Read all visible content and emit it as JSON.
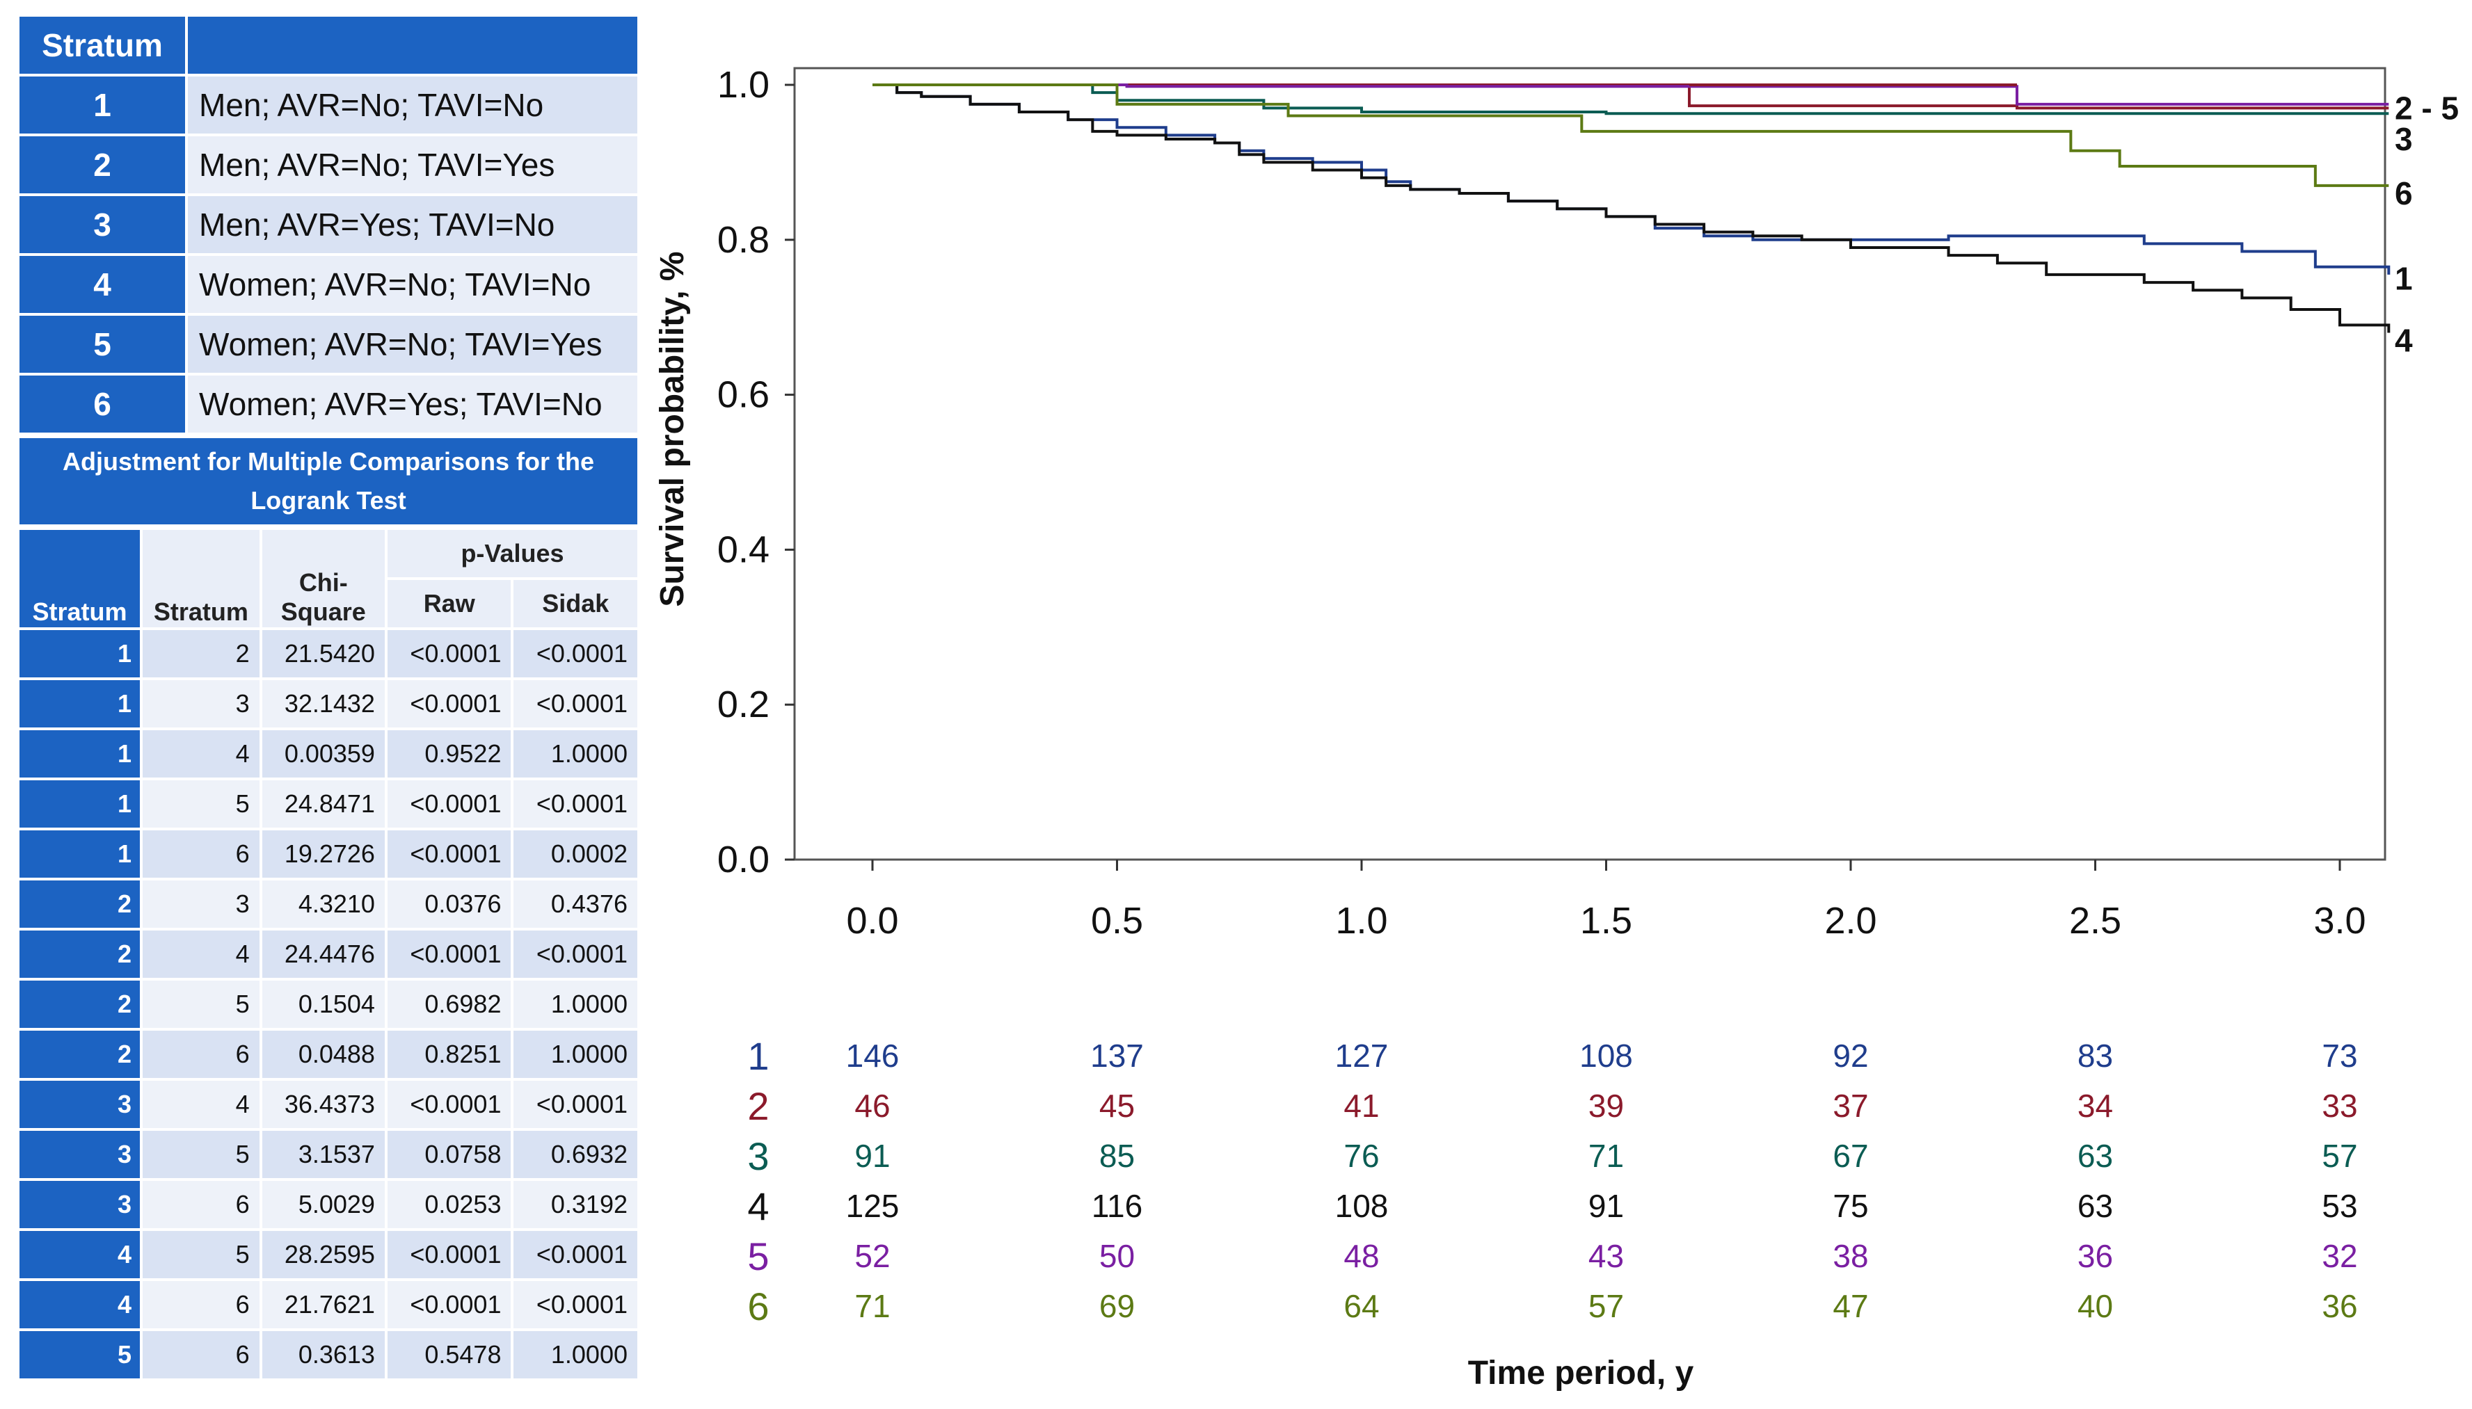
{
  "strata_table": {
    "header": "Stratum",
    "rows": [
      {
        "id": "1",
        "label": "Men; AVR=No; TAVI=No"
      },
      {
        "id": "2",
        "label": "Men; AVR=No; TAVI=Yes"
      },
      {
        "id": "3",
        "label": "Men; AVR=Yes; TAVI=No"
      },
      {
        "id": "4",
        "label": "Women; AVR=No; TAVI=No"
      },
      {
        "id": "5",
        "label": "Women; AVR=No; TAVI=Yes"
      },
      {
        "id": "6",
        "label": "Women; AVR=Yes; TAVI=No"
      }
    ]
  },
  "comparison_table": {
    "title": "Adjustment for Multiple Comparisons for the Logrank Test",
    "headers": {
      "stratum_a": "Stratum",
      "stratum_b": "Stratum",
      "chi_line1": "Chi-",
      "chi_line2": "Square",
      "pvalues": "p-Values",
      "raw": "Raw",
      "sidak": "Sidak"
    },
    "rows": [
      {
        "a": "1",
        "b": "2",
        "chi": "21.5420",
        "raw": "<0.0001",
        "sidak": "<0.0001"
      },
      {
        "a": "1",
        "b": "3",
        "chi": "32.1432",
        "raw": "<0.0001",
        "sidak": "<0.0001"
      },
      {
        "a": "1",
        "b": "4",
        "chi": "0.00359",
        "raw": "0.9522",
        "sidak": "1.0000"
      },
      {
        "a": "1",
        "b": "5",
        "chi": "24.8471",
        "raw": "<0.0001",
        "sidak": "<0.0001"
      },
      {
        "a": "1",
        "b": "6",
        "chi": "19.2726",
        "raw": "<0.0001",
        "sidak": "0.0002"
      },
      {
        "a": "2",
        "b": "3",
        "chi": "4.3210",
        "raw": "0.0376",
        "sidak": "0.4376"
      },
      {
        "a": "2",
        "b": "4",
        "chi": "24.4476",
        "raw": "<0.0001",
        "sidak": "<0.0001"
      },
      {
        "a": "2",
        "b": "5",
        "chi": "0.1504",
        "raw": "0.6982",
        "sidak": "1.0000"
      },
      {
        "a": "2",
        "b": "6",
        "chi": "0.0488",
        "raw": "0.8251",
        "sidak": "1.0000"
      },
      {
        "a": "3",
        "b": "4",
        "chi": "36.4373",
        "raw": "<0.0001",
        "sidak": "<0.0001"
      },
      {
        "a": "3",
        "b": "5",
        "chi": "3.1537",
        "raw": "0.0758",
        "sidak": "0.6932"
      },
      {
        "a": "3",
        "b": "6",
        "chi": "5.0029",
        "raw": "0.0253",
        "sidak": "0.3192"
      },
      {
        "a": "4",
        "b": "5",
        "chi": "28.2595",
        "raw": "<0.0001",
        "sidak": "<0.0001"
      },
      {
        "a": "4",
        "b": "6",
        "chi": "21.7621",
        "raw": "<0.0001",
        "sidak": "<0.0001"
      },
      {
        "a": "5",
        "b": "6",
        "chi": "0.3613",
        "raw": "0.5478",
        "sidak": "1.0000"
      }
    ]
  },
  "chart_data": {
    "type": "line",
    "subtype": "kaplan-meier step",
    "xlabel": "Time period, y",
    "ylabel": "Survival probability, %",
    "xlim": [
      -0.16,
      3.1
    ],
    "ylim": [
      0.0,
      1.0
    ],
    "xticks": [
      "0.0",
      "0.5",
      "1.0",
      "1.5",
      "2.0",
      "2.5",
      "3.0"
    ],
    "yticks": [
      "0.0",
      "0.2",
      "0.4",
      "0.6",
      "0.8",
      "1.0"
    ],
    "grid": false,
    "end_labels": [
      {
        "text": "2 - 5",
        "y": 0.97
      },
      {
        "text": "3",
        "y": 0.93
      },
      {
        "text": "6",
        "y": 0.86
      },
      {
        "text": "1",
        "y": 0.75
      },
      {
        "text": "4",
        "y": 0.67
      }
    ],
    "series": [
      {
        "name": "1",
        "color": "#1f3d8c",
        "x": [
          0,
          0.05,
          0.1,
          0.2,
          0.3,
          0.4,
          0.5,
          0.6,
          0.7,
          0.75,
          0.8,
          0.9,
          1.0,
          1.05,
          1.1,
          1.2,
          1.3,
          1.4,
          1.5,
          1.6,
          1.7,
          1.8,
          1.9,
          2.0,
          2.2,
          2.4,
          2.5,
          2.6,
          2.8,
          2.95,
          3.1
        ],
        "y": [
          1.0,
          0.99,
          0.985,
          0.975,
          0.965,
          0.955,
          0.945,
          0.935,
          0.925,
          0.915,
          0.905,
          0.9,
          0.89,
          0.875,
          0.865,
          0.86,
          0.85,
          0.84,
          0.83,
          0.815,
          0.805,
          0.8,
          0.8,
          0.8,
          0.805,
          0.805,
          0.805,
          0.795,
          0.785,
          0.765,
          0.755
        ]
      },
      {
        "name": "2",
        "color": "#8b1a2b",
        "x": [
          0,
          1.67,
          1.67,
          2.34,
          2.34,
          3.1
        ],
        "y": [
          1.0,
          1.0,
          0.973,
          0.973,
          0.97,
          0.97
        ]
      },
      {
        "name": "3",
        "color": "#0b5c53",
        "x": [
          0,
          0.45,
          0.5,
          0.8,
          1.0,
          1.5,
          2.0,
          2.5,
          3.1
        ],
        "y": [
          1.0,
          0.99,
          0.98,
          0.97,
          0.965,
          0.963,
          0.963,
          0.963,
          0.963
        ]
      },
      {
        "name": "4",
        "color": "#111111",
        "x": [
          0,
          0.05,
          0.1,
          0.2,
          0.3,
          0.4,
          0.45,
          0.5,
          0.6,
          0.7,
          0.75,
          0.8,
          0.9,
          1.0,
          1.05,
          1.1,
          1.2,
          1.3,
          1.4,
          1.5,
          1.6,
          1.7,
          1.8,
          1.9,
          2.0,
          2.2,
          2.3,
          2.4,
          2.5,
          2.6,
          2.7,
          2.8,
          2.9,
          3.0,
          3.1
        ],
        "y": [
          1.0,
          0.99,
          0.985,
          0.975,
          0.965,
          0.955,
          0.94,
          0.935,
          0.93,
          0.925,
          0.91,
          0.9,
          0.89,
          0.88,
          0.87,
          0.865,
          0.86,
          0.85,
          0.84,
          0.83,
          0.82,
          0.81,
          0.805,
          0.8,
          0.79,
          0.78,
          0.77,
          0.755,
          0.755,
          0.745,
          0.735,
          0.725,
          0.71,
          0.69,
          0.68
        ]
      },
      {
        "name": "5",
        "color": "#7a1fa2",
        "x": [
          0,
          0.52,
          0.52,
          1.67,
          1.67,
          2.34,
          2.34,
          3.1
        ],
        "y": [
          1.0,
          1.0,
          0.998,
          0.998,
          0.998,
          0.998,
          0.975,
          0.975
        ]
      },
      {
        "name": "6",
        "color": "#5c7a14",
        "x": [
          0,
          0.5,
          0.5,
          0.85,
          0.85,
          1.45,
          1.45,
          2.45,
          2.45,
          2.55,
          2.55,
          2.95,
          2.95,
          3.1
        ],
        "y": [
          1.0,
          1.0,
          0.975,
          0.975,
          0.96,
          0.96,
          0.94,
          0.94,
          0.915,
          0.915,
          0.895,
          0.895,
          0.87,
          0.87
        ]
      }
    ],
    "risk_table": {
      "times": [
        "0.0",
        "0.5",
        "1.0",
        "1.5",
        "2.0",
        "2.5",
        "3.0"
      ],
      "rows": [
        {
          "label": "1",
          "color": "#1f3d8c",
          "values": [
            "146",
            "137",
            "127",
            "108",
            "92",
            "83",
            "73"
          ]
        },
        {
          "label": "2",
          "color": "#8b1a2b",
          "values": [
            "46",
            "45",
            "41",
            "39",
            "37",
            "34",
            "33"
          ]
        },
        {
          "label": "3",
          "color": "#0b5c53",
          "values": [
            "91",
            "85",
            "76",
            "71",
            "67",
            "63",
            "57"
          ]
        },
        {
          "label": "4",
          "color": "#111111",
          "values": [
            "125",
            "116",
            "108",
            "91",
            "75",
            "63",
            "53"
          ]
        },
        {
          "label": "5",
          "color": "#7a1fa2",
          "values": [
            "52",
            "50",
            "48",
            "43",
            "38",
            "36",
            "32"
          ]
        },
        {
          "label": "6",
          "color": "#5c7a14",
          "values": [
            "71",
            "69",
            "64",
            "57",
            "47",
            "40",
            "36"
          ]
        }
      ]
    }
  }
}
